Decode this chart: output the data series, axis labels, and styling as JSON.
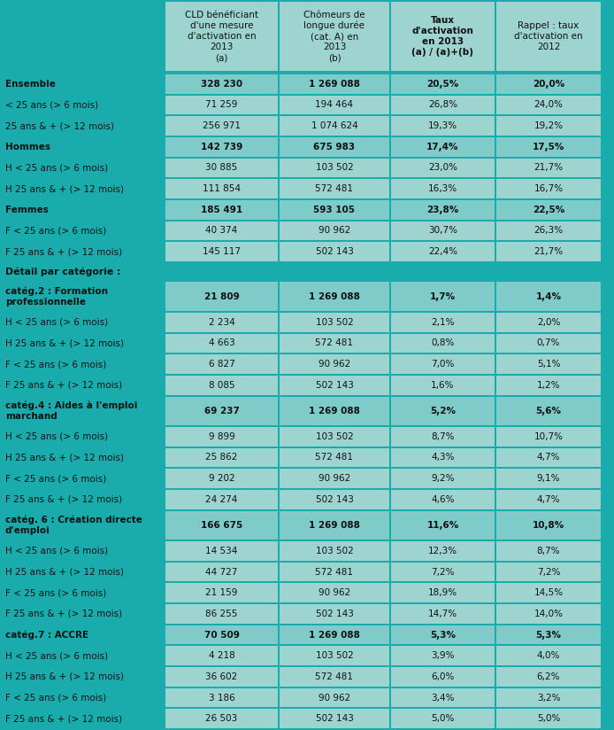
{
  "col_headers": [
    "",
    "CLD bénéficiant\nd'une mesure\nd'activation en\n2013\n(a)",
    "Chômeurs de\nlongue durée\n(cat. A) en\n2013\n(b)",
    "Taux\nd'activation\nen 2013\n(a) / (a)+(b)",
    "Rappel : taux\nd'activation en\n2012"
  ],
  "rows": [
    {
      "label": "Ensemble",
      "vals": [
        "328 230",
        "1 269 088",
        "20,5%",
        "20,0%"
      ],
      "bold": true,
      "section": false,
      "subheader": true,
      "multiline": false
    },
    {
      "label": "< 25 ans (> 6 mois)",
      "vals": [
        "71 259",
        "194 464",
        "26,8%",
        "24,0%"
      ],
      "bold": false,
      "section": false,
      "subheader": false,
      "multiline": false
    },
    {
      "label": "25 ans & + (> 12 mois)",
      "vals": [
        "256 971",
        "1 074 624",
        "19,3%",
        "19,2%"
      ],
      "bold": false,
      "section": false,
      "subheader": false,
      "multiline": false
    },
    {
      "label": "Hommes",
      "vals": [
        "142 739",
        "675 983",
        "17,4%",
        "17,5%"
      ],
      "bold": true,
      "section": false,
      "subheader": true,
      "multiline": false
    },
    {
      "label": "H < 25 ans (> 6 mois)",
      "vals": [
        "30 885",
        "103 502",
        "23,0%",
        "21,7%"
      ],
      "bold": false,
      "section": false,
      "subheader": false,
      "multiline": false
    },
    {
      "label": "H 25 ans & + (> 12 mois)",
      "vals": [
        "111 854",
        "572 481",
        "16,3%",
        "16,7%"
      ],
      "bold": false,
      "section": false,
      "subheader": false,
      "multiline": false
    },
    {
      "label": "Femmes",
      "vals": [
        "185 491",
        "593 105",
        "23,8%",
        "22,5%"
      ],
      "bold": true,
      "section": false,
      "subheader": true,
      "multiline": false
    },
    {
      "label": "F < 25 ans (> 6 mois)",
      "vals": [
        "40 374",
        "90 962",
        "30,7%",
        "26,3%"
      ],
      "bold": false,
      "section": false,
      "subheader": false,
      "multiline": false
    },
    {
      "label": "F 25 ans & + (> 12 mois)",
      "vals": [
        "145 117",
        "502 143",
        "22,4%",
        "21,7%"
      ],
      "bold": false,
      "section": false,
      "subheader": false,
      "multiline": false
    },
    {
      "label": "Détail par catégorie :",
      "vals": [
        "",
        "",
        "",
        ""
      ],
      "bold": true,
      "section": true,
      "subheader": false,
      "multiline": false
    },
    {
      "label": "catég.2 : Formation\nprofessionnelle",
      "vals": [
        "21 809",
        "1 269 088",
        "1,7%",
        "1,4%"
      ],
      "bold": true,
      "section": false,
      "subheader": true,
      "multiline": true
    },
    {
      "label": "H < 25 ans (> 6 mois)",
      "vals": [
        "2 234",
        "103 502",
        "2,1%",
        "2,0%"
      ],
      "bold": false,
      "section": false,
      "subheader": false,
      "multiline": false
    },
    {
      "label": "H 25 ans & + (> 12 mois)",
      "vals": [
        "4 663",
        "572 481",
        "0,8%",
        "0,7%"
      ],
      "bold": false,
      "section": false,
      "subheader": false,
      "multiline": false
    },
    {
      "label": "F < 25 ans (> 6 mois)",
      "vals": [
        "6 827",
        "90 962",
        "7,0%",
        "5,1%"
      ],
      "bold": false,
      "section": false,
      "subheader": false,
      "multiline": false
    },
    {
      "label": "F 25 ans & + (> 12 mois)",
      "vals": [
        "8 085",
        "502 143",
        "1,6%",
        "1,2%"
      ],
      "bold": false,
      "section": false,
      "subheader": false,
      "multiline": false
    },
    {
      "label": "catég.4 : Aides à l'emploi\nmarchand",
      "vals": [
        "69 237",
        "1 269 088",
        "5,2%",
        "5,6%"
      ],
      "bold": true,
      "section": false,
      "subheader": true,
      "multiline": true
    },
    {
      "label": "H < 25 ans (> 6 mois)",
      "vals": [
        "9 899",
        "103 502",
        "8,7%",
        "10,7%"
      ],
      "bold": false,
      "section": false,
      "subheader": false,
      "multiline": false
    },
    {
      "label": "H 25 ans & + (> 12 mois)",
      "vals": [
        "25 862",
        "572 481",
        "4,3%",
        "4,7%"
      ],
      "bold": false,
      "section": false,
      "subheader": false,
      "multiline": false
    },
    {
      "label": "F < 25 ans (> 6 mois)",
      "vals": [
        "9 202",
        "90 962",
        "9,2%",
        "9,1%"
      ],
      "bold": false,
      "section": false,
      "subheader": false,
      "multiline": false
    },
    {
      "label": "F 25 ans & + (> 12 mois)",
      "vals": [
        "24 274",
        "502 143",
        "4,6%",
        "4,7%"
      ],
      "bold": false,
      "section": false,
      "subheader": false,
      "multiline": false
    },
    {
      "label": "catég. 6 : Création directe\nd'emploi",
      "vals": [
        "166 675",
        "1 269 088",
        "11,6%",
        "10,8%"
      ],
      "bold": true,
      "section": false,
      "subheader": true,
      "multiline": true
    },
    {
      "label": "H < 25 ans (> 6 mois)",
      "vals": [
        "14 534",
        "103 502",
        "12,3%",
        "8,7%"
      ],
      "bold": false,
      "section": false,
      "subheader": false,
      "multiline": false
    },
    {
      "label": "H 25 ans & + (> 12 mois)",
      "vals": [
        "44 727",
        "572 481",
        "7,2%",
        "7,2%"
      ],
      "bold": false,
      "section": false,
      "subheader": false,
      "multiline": false
    },
    {
      "label": "F < 25 ans (> 6 mois)",
      "vals": [
        "21 159",
        "90 962",
        "18,9%",
        "14,5%"
      ],
      "bold": false,
      "section": false,
      "subheader": false,
      "multiline": false
    },
    {
      "label": "F 25 ans & + (> 12 mois)",
      "vals": [
        "86 255",
        "502 143",
        "14,7%",
        "14,0%"
      ],
      "bold": false,
      "section": false,
      "subheader": false,
      "multiline": false
    },
    {
      "label": "catég.7 : ACCRE",
      "vals": [
        "70 509",
        "1 269 088",
        "5,3%",
        "5,3%"
      ],
      "bold": true,
      "section": false,
      "subheader": true,
      "multiline": false
    },
    {
      "label": "H < 25 ans (> 6 mois)",
      "vals": [
        "4 218",
        "103 502",
        "3,9%",
        "4,0%"
      ],
      "bold": false,
      "section": false,
      "subheader": false,
      "multiline": false
    },
    {
      "label": "H 25 ans & + (> 12 mois)",
      "vals": [
        "36 602",
        "572 481",
        "6,0%",
        "6,2%"
      ],
      "bold": false,
      "section": false,
      "subheader": false,
      "multiline": false
    },
    {
      "label": "F < 25 ans (> 6 mois)",
      "vals": [
        "3 186",
        "90 962",
        "3,4%",
        "3,2%"
      ],
      "bold": false,
      "section": false,
      "subheader": false,
      "multiline": false
    },
    {
      "label": "F 25 ans & + (> 12 mois)",
      "vals": [
        "26 503",
        "502 143",
        "5,0%",
        "5,0%"
      ],
      "bold": false,
      "section": false,
      "subheader": false,
      "multiline": false
    }
  ],
  "bg_teal": "#1aacac",
  "cell_light": "#9ed4cf",
  "cell_mid": "#7ecbca",
  "text_dark": "#111111"
}
